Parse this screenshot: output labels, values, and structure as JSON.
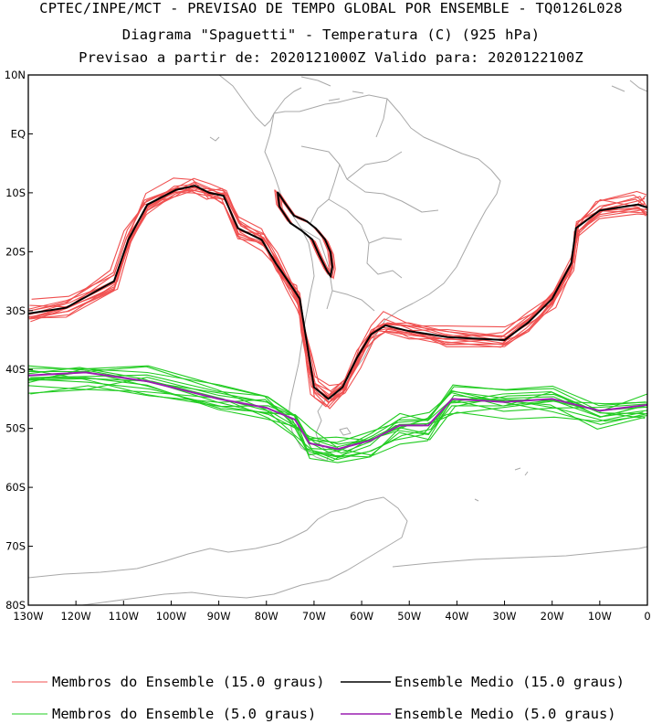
{
  "title": {
    "line1": "CPTEC/INPE/MCT - PREVISAO DE TEMPO GLOBAL POR ENSEMBLE - TQ0126L028",
    "line2": "Diagrama \"Spaguetti\" - Temperatura (C) (925 hPa)",
    "line3": "Previsao a partir de: 2020121000Z  Valido para: 2020122100Z"
  },
  "axes": {
    "x_labels": [
      "130W",
      "120W",
      "110W",
      "100W",
      "90W",
      "80W",
      "70W",
      "60W",
      "50W",
      "40W",
      "30W",
      "20W",
      "10W",
      "0"
    ],
    "y_labels": [
      "10N",
      "EQ",
      "10S",
      "20S",
      "30S",
      "40S",
      "50S",
      "60S",
      "70S",
      "80S"
    ]
  },
  "legend": {
    "members_15": "Membros do Ensemble (15.0 graus)",
    "mean_15": "Ensemble Medio (15.0 graus)",
    "members_5": "Membros do Ensemble (5.0 graus)",
    "mean_5": "Ensemble Medio (5.0 graus)"
  },
  "colors": {
    "members_15": "#f05050",
    "mean_15": "#000000",
    "members_5": "#22cc22",
    "mean_5": "#9a1fb0",
    "coast": "#a8a8a8"
  },
  "chart_data": {
    "type": "spaghetti-contour-map",
    "variable": "Temperatura (C) 925 hPa",
    "lon_range": [
      -130,
      0
    ],
    "lat_range": [
      -80,
      10
    ],
    "contour_levels": [
      15.0,
      5.0
    ],
    "mean_15": [
      [
        -130,
        -30.5
      ],
      [
        -122,
        -29.5
      ],
      [
        -112,
        -25
      ],
      [
        -109,
        -18
      ],
      [
        -105,
        -12
      ],
      [
        -99,
        -9.5
      ],
      [
        -95,
        -8.8
      ],
      [
        -92,
        -10
      ],
      [
        -89,
        -10.5
      ],
      [
        -86,
        -16
      ],
      [
        -81,
        -18
      ],
      [
        -78,
        -22
      ],
      [
        -75,
        -25.5
      ],
      [
        -73,
        -28
      ],
      [
        -72,
        -33
      ],
      [
        -71,
        -38
      ],
      [
        -70,
        -43
      ],
      [
        -67,
        -45
      ],
      [
        -64,
        -43
      ],
      [
        -61,
        -38
      ],
      [
        -58,
        -34
      ],
      [
        -55,
        -32.5
      ],
      [
        -50,
        -33.5
      ],
      [
        -42,
        -34.5
      ],
      [
        -30,
        -35
      ],
      [
        -25,
        -32
      ],
      [
        -20,
        -28
      ],
      [
        -16,
        -22
      ],
      [
        -15,
        -16
      ],
      [
        -10,
        -13
      ],
      [
        -2,
        -12
      ],
      [
        0,
        -12.5
      ]
    ],
    "mean_5": [
      [
        -130,
        -41
      ],
      [
        -118,
        -40.5
      ],
      [
        -105,
        -42
      ],
      [
        -90,
        -45
      ],
      [
        -80,
        -46.5
      ],
      [
        -74,
        -48.5
      ],
      [
        -71,
        -52.5
      ],
      [
        -65,
        -53.5
      ],
      [
        -58,
        -52
      ],
      [
        -52,
        -49.5
      ],
      [
        -46,
        -49.5
      ],
      [
        -41,
        -45
      ],
      [
        -30,
        -45.5
      ],
      [
        -20,
        -45
      ],
      [
        -10,
        -47
      ],
      [
        0,
        -46
      ]
    ]
  }
}
